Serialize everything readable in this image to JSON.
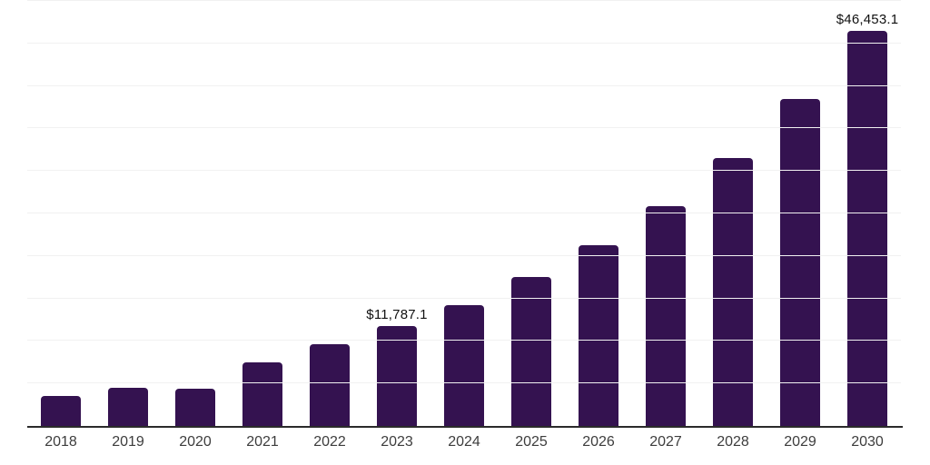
{
  "chart_data": {
    "type": "bar",
    "title": "",
    "xlabel": "",
    "ylabel": "",
    "categories": [
      "2018",
      "2019",
      "2020",
      "2021",
      "2022",
      "2023",
      "2024",
      "2025",
      "2026",
      "2027",
      "2028",
      "2029",
      "2030"
    ],
    "values": [
      3480,
      4440,
      4340,
      7440,
      9580,
      11787.1,
      14190,
      17500,
      21250,
      25860,
      31530,
      38430,
      46453.1
    ],
    "data_labels": {
      "2023": "$11,787.1",
      "2030": "$46,453.1"
    },
    "ylim": [
      0,
      50000
    ],
    "grid_step": 5000,
    "grid": "horizontal",
    "legend": "none",
    "y_tick_labels_visible": false
  },
  "colors": {
    "bar": "#341250",
    "gridline": "#f1f1f1",
    "axis_line": "#2b2b2b",
    "x_tick_label": "#3d3d3d",
    "data_label": "#111111",
    "background": "#ffffff"
  }
}
